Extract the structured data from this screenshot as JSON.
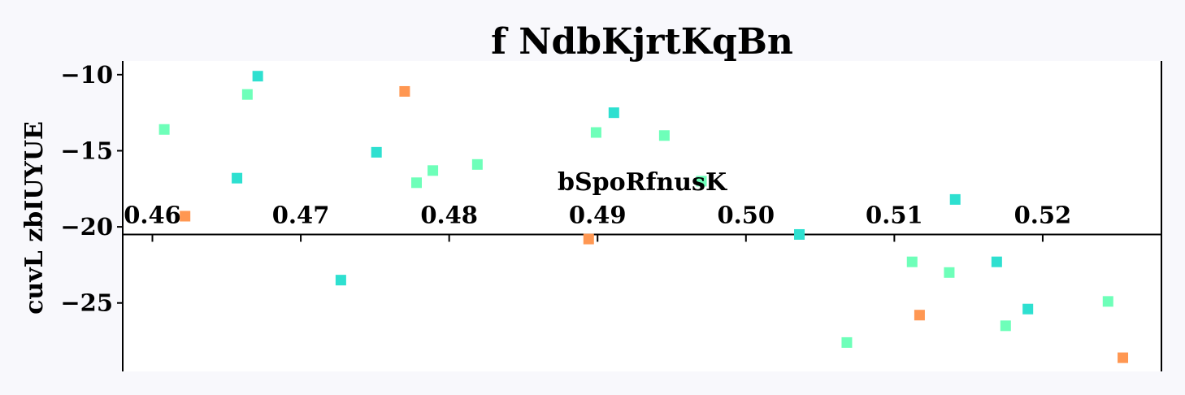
{
  "chart_data": {
    "type": "scatter",
    "title": "f NdbKjrtKqBn",
    "xlabel": "bSpoRfnusK",
    "ylabel": "cuvL zbIUYUE",
    "xlim": [
      0.458,
      0.528
    ],
    "ylim": [
      -29.5,
      -9.1
    ],
    "x_ticks": [
      0.46,
      0.47,
      0.48,
      0.49,
      0.5,
      0.51,
      0.52
    ],
    "x_tick_labels": [
      "0.46",
      "0.47",
      "0.48",
      "0.49",
      "0.50",
      "0.51",
      "0.52"
    ],
    "y_ticks": [
      -10,
      -15,
      -20,
      -25
    ],
    "y_tick_labels": [
      "−10",
      "−15",
      "−20",
      "−25"
    ],
    "x_axis_position_y": -20.5,
    "grid": false,
    "marker": "square",
    "series": [
      {
        "color": "#2ee0d0",
        "points": [
          {
            "x": 0.4671,
            "y": -10.1
          },
          {
            "x": 0.4911,
            "y": -12.5
          },
          {
            "x": 0.4751,
            "y": -15.1
          },
          {
            "x": 0.4657,
            "y": -16.8
          },
          {
            "x": 0.5141,
            "y": -18.2
          },
          {
            "x": 0.5036,
            "y": -20.5
          },
          {
            "x": 0.4727,
            "y": -23.5
          },
          {
            "x": 0.5169,
            "y": -22.3
          },
          {
            "x": 0.519,
            "y": -25.4
          }
        ]
      },
      {
        "color": "#6effb9",
        "points": [
          {
            "x": 0.4608,
            "y": -13.6
          },
          {
            "x": 0.4664,
            "y": -11.3
          },
          {
            "x": 0.4899,
            "y": -13.8
          },
          {
            "x": 0.4945,
            "y": -14.0
          },
          {
            "x": 0.4789,
            "y": -16.3
          },
          {
            "x": 0.4778,
            "y": -17.1
          },
          {
            "x": 0.4819,
            "y": -15.9
          },
          {
            "x": 0.497,
            "y": -17.0
          },
          {
            "x": 0.5112,
            "y": -22.3
          },
          {
            "x": 0.5137,
            "y": -23.0
          },
          {
            "x": 0.5068,
            "y": -27.6
          },
          {
            "x": 0.5175,
            "y": -26.5
          },
          {
            "x": 0.5244,
            "y": -24.9
          }
        ]
      },
      {
        "color": "#ff9752",
        "points": [
          {
            "x": 0.477,
            "y": -11.1
          },
          {
            "x": 0.4622,
            "y": -19.3
          },
          {
            "x": 0.4894,
            "y": -20.8
          },
          {
            "x": 0.5117,
            "y": -25.8
          },
          {
            "x": 0.5254,
            "y": -28.6
          }
        ]
      }
    ]
  }
}
